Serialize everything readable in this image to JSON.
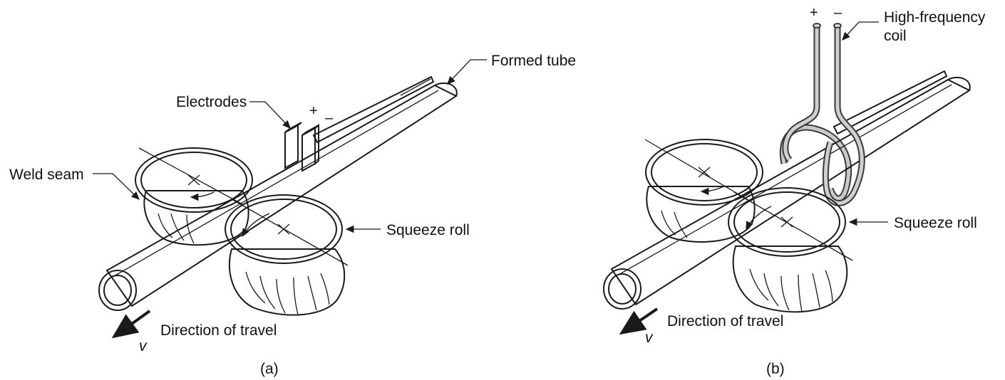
{
  "panel_a": {
    "caption": "(a)",
    "labels": {
      "electrodes": "Electrodes",
      "formed_tube": "Formed tube",
      "weld_seam": "Weld seam",
      "squeeze_roll": "Squeeze roll",
      "direction": "Direction of travel",
      "velocity": "v",
      "plus": "+",
      "minus": "–"
    }
  },
  "panel_b": {
    "caption": "(b)",
    "labels": {
      "coil_line1": "High-frequency",
      "coil_line2": "coil",
      "squeeze_roll": "Squeeze roll",
      "direction": "Direction of travel",
      "velocity": "v",
      "plus": "+",
      "minus": "–"
    }
  },
  "colors": {
    "tube": "#d9b071",
    "tube_dark": "#b8894a",
    "roll": "#d4d4d4",
    "roll_rim": "#9a9a9a",
    "electrode": "#8c8c8c"
  }
}
